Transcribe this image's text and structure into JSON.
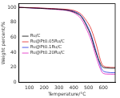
{
  "chart_data": {
    "type": "line",
    "x_label": "Temperature/°C",
    "y_label": "Weight percent/%",
    "xlim": [
      30,
      680
    ],
    "xticks": [
      100,
      200,
      300,
      400,
      500,
      600
    ],
    "ylim": [
      0,
      105
    ],
    "yticks": [
      0,
      20,
      40,
      60,
      80,
      100
    ],
    "grid": false,
    "legend": "center left",
    "x": [
      30,
      100,
      200,
      300,
      350,
      400,
      450,
      500,
      520,
      550,
      580,
      600,
      650,
      680
    ],
    "series": [
      {
        "name": "Ru/C",
        "color": "#000000",
        "values": [
          100,
          99.5,
          98.5,
          97.5,
          96.5,
          94,
          88,
          70,
          60,
          40,
          25,
          20,
          19,
          19
        ]
      },
      {
        "name": "Ru@Pt0.05Ru/C",
        "color": "#e02020",
        "values": [
          100,
          99.8,
          99,
          98,
          97.5,
          96,
          91,
          78,
          70,
          52,
          30,
          22,
          20,
          20
        ]
      },
      {
        "name": "Ru@Pt0.1Ru/C",
        "color": "#2030e0",
        "values": [
          100,
          99.6,
          98.8,
          97.8,
          97,
          95,
          89,
          72,
          62,
          42,
          22,
          15,
          13,
          13
        ]
      },
      {
        "name": "Ru@Pt0.20Ru/C",
        "color": "#e020c0",
        "values": [
          100,
          99.5,
          98.5,
          97,
          96,
          93,
          85,
          65,
          55,
          35,
          18,
          12,
          11,
          11
        ]
      }
    ]
  }
}
